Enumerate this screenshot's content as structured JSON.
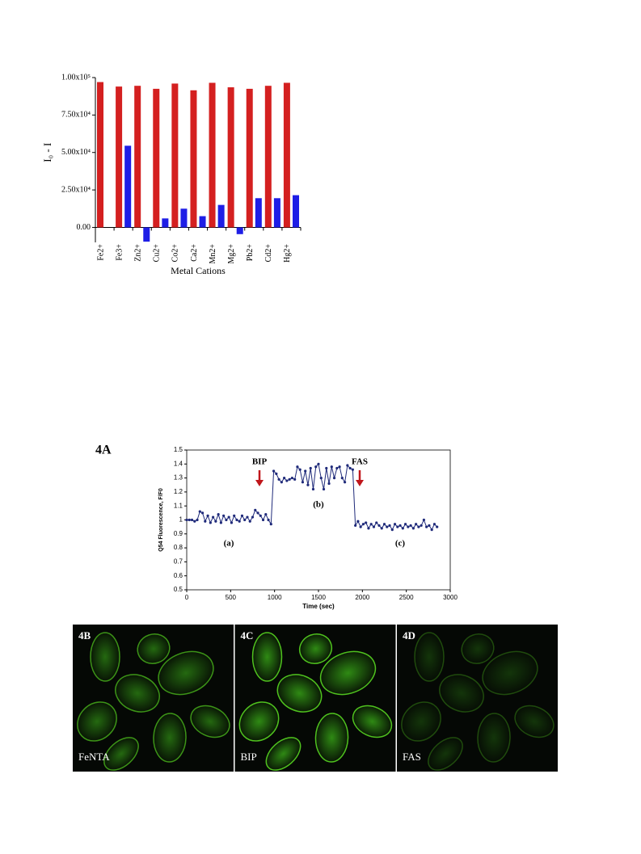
{
  "chart_data": [
    {
      "type": "bar",
      "ylabel": "I₀ - I",
      "xlabel": "Metal Cations",
      "categories": [
        "Fe2+",
        "Fe3+",
        "Zn2+",
        "Cu2+",
        "Co2+",
        "Ca2+",
        "Mn2+",
        "Mg2+",
        "Pb2+",
        "Cd2+",
        "Hg2+"
      ],
      "series": [
        {
          "color": "#d42020",
          "values": [
            97000,
            94000,
            94500,
            92500,
            96000,
            91500,
            96500,
            93500,
            92500,
            94500,
            96500
          ]
        },
        {
          "color": "#1e1ee6",
          "values": [
            0,
            54500,
            -9500,
            6000,
            12500,
            7500,
            15000,
            -4500,
            19500,
            19500,
            21500
          ]
        }
      ],
      "ylim": [
        -10000,
        100000
      ],
      "yticks": [
        {
          "value": 0,
          "label": "0.00"
        },
        {
          "value": 25000,
          "label": "2.50x10⁴"
        },
        {
          "value": 50000,
          "label": "5.00x10⁴"
        },
        {
          "value": 75000,
          "label": "7.50x10⁴"
        },
        {
          "value": 100000,
          "label": "1.00x10⁵"
        }
      ],
      "grid": false
    },
    {
      "type": "line",
      "xlabel": "Time (sec)",
      "ylabel": "Q54 Fluorescence, F/F0",
      "x": [
        0,
        30,
        60,
        90,
        120,
        150,
        180,
        210,
        240,
        270,
        300,
        330,
        360,
        390,
        420,
        450,
        480,
        510,
        540,
        570,
        600,
        630,
        660,
        690,
        720,
        750,
        780,
        810,
        840,
        870,
        900,
        930,
        960,
        990,
        1020,
        1050,
        1080,
        1110,
        1140,
        1170,
        1200,
        1230,
        1260,
        1290,
        1320,
        1350,
        1380,
        1410,
        1440,
        1470,
        1500,
        1530,
        1560,
        1590,
        1620,
        1650,
        1680,
        1710,
        1740,
        1770,
        1800,
        1830,
        1860,
        1890,
        1920,
        1950,
        1980,
        2010,
        2040,
        2070,
        2100,
        2130,
        2160,
        2190,
        2220,
        2250,
        2280,
        2310,
        2340,
        2370,
        2400,
        2430,
        2460,
        2490,
        2520,
        2550,
        2580,
        2610,
        2640,
        2670,
        2700,
        2730,
        2760,
        2790,
        2820,
        2850
      ],
      "series": [
        {
          "color": "#1f2a7a",
          "values": [
            1.0,
            1.0,
            1.0,
            0.99,
            1.0,
            1.06,
            1.05,
            0.99,
            1.03,
            0.98,
            1.02,
            0.99,
            1.04,
            0.98,
            1.03,
            1.0,
            1.02,
            0.98,
            1.03,
            1.0,
            0.99,
            1.03,
            1.0,
            1.02,
            0.99,
            1.02,
            1.07,
            1.05,
            1.03,
            1.0,
            1.04,
            1.0,
            0.97,
            1.35,
            1.33,
            1.29,
            1.27,
            1.3,
            1.28,
            1.29,
            1.3,
            1.29,
            1.38,
            1.36,
            1.27,
            1.35,
            1.25,
            1.37,
            1.22,
            1.38,
            1.4,
            1.3,
            1.22,
            1.37,
            1.26,
            1.38,
            1.3,
            1.37,
            1.38,
            1.3,
            1.27,
            1.39,
            1.37,
            1.36,
            0.96,
            0.99,
            0.95,
            0.97,
            0.98,
            0.94,
            0.97,
            0.95,
            0.98,
            0.96,
            0.94,
            0.97,
            0.95,
            0.96,
            0.93,
            0.97,
            0.95,
            0.96,
            0.94,
            0.97,
            0.95,
            0.96,
            0.94,
            0.97,
            0.95,
            0.96,
            1.0,
            0.95,
            0.96,
            0.93,
            0.97,
            0.95
          ]
        }
      ],
      "xlim": [
        0,
        3000
      ],
      "xticks": [
        0,
        500,
        1000,
        1500,
        2000,
        2500,
        3000
      ],
      "ylim": [
        0.5,
        1.5
      ],
      "yticks": [
        0.5,
        0.6,
        0.7,
        0.8,
        0.9,
        1,
        1.1,
        1.2,
        1.3,
        1.4,
        1.5
      ],
      "annotations": [
        "BIP",
        "FAS",
        "(a)",
        "(b)",
        "(c)"
      ],
      "grid": false
    }
  ],
  "panel_label": "4A",
  "images": [
    {
      "panel": "4B",
      "label": "FeNTA"
    },
    {
      "panel": "4C",
      "label": "BIP"
    },
    {
      "panel": "4D",
      "label": "FAS"
    }
  ]
}
